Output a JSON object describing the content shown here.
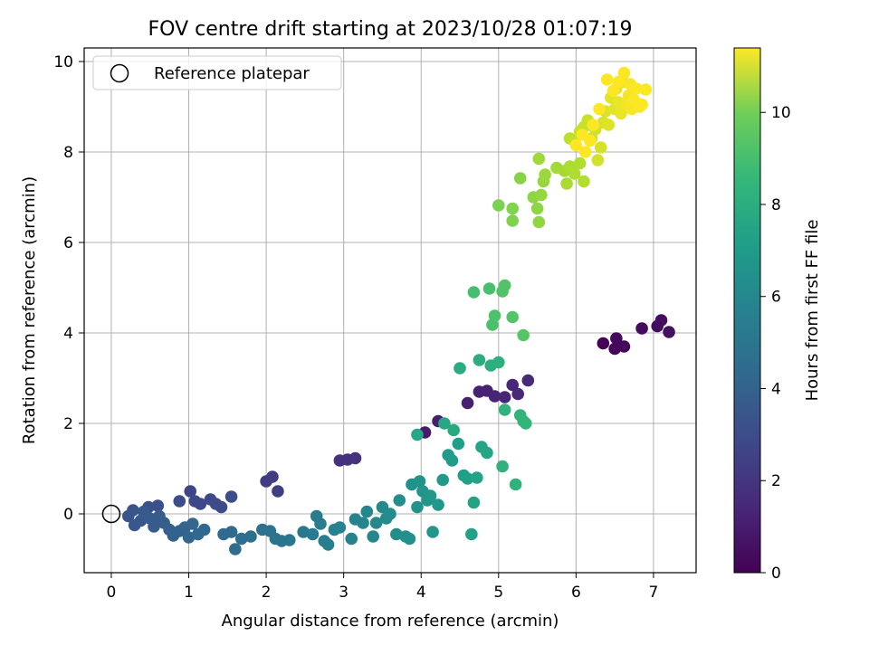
{
  "chart_data": {
    "type": "scatter",
    "title": "FOV centre drift starting at 2023/10/28 01:07:19",
    "xlabel": "Angular distance from reference (arcmin)",
    "ylabel": "Rotation from reference (arcmin)",
    "xlim": [
      -0.35,
      7.55
    ],
    "ylim": [
      -1.3,
      10.3
    ],
    "xticks": [
      "0",
      "1",
      "2",
      "3",
      "4",
      "5",
      "6",
      "7"
    ],
    "yticks": [
      "0",
      "2",
      "4",
      "6",
      "8",
      "10"
    ],
    "grid": true,
    "legend": {
      "placement": "upper-left",
      "entries": [
        "Reference platepar"
      ]
    },
    "reference_point": {
      "x": 0,
      "y": 0
    },
    "colorbar": {
      "label": "Hours from first FF file",
      "range": [
        0,
        11.4
      ],
      "ticks": [
        "0",
        "2",
        "4",
        "6",
        "8",
        "10"
      ],
      "colormap": "viridis"
    },
    "series": [
      {
        "points": [
          [
            6.35,
            3.77
          ],
          [
            6.5,
            3.65
          ],
          [
            6.52,
            3.88
          ],
          [
            6.62,
            3.7
          ],
          [
            6.85,
            4.1
          ],
          [
            7.05,
            4.15
          ],
          [
            7.1,
            4.28
          ],
          [
            7.2,
            4.02
          ],
          [
            4.05,
            1.8
          ],
          [
            4.22,
            2.05
          ],
          [
            4.6,
            2.45
          ],
          [
            4.75,
            2.7
          ],
          [
            4.85,
            2.72
          ],
          [
            4.95,
            2.6
          ],
          [
            5.08,
            2.58
          ],
          [
            5.18,
            2.85
          ],
          [
            5.25,
            2.65
          ],
          [
            5.38,
            2.95
          ],
          [
            2.95,
            1.18
          ],
          [
            3.05,
            1.2
          ],
          [
            3.15,
            1.23
          ],
          [
            2.0,
            0.72
          ],
          [
            2.08,
            0.82
          ],
          [
            2.15,
            0.5
          ],
          [
            1.02,
            0.5
          ],
          [
            1.08,
            0.28
          ],
          [
            1.15,
            0.22
          ],
          [
            1.28,
            0.32
          ],
          [
            1.35,
            0.22
          ],
          [
            1.42,
            0.15
          ],
          [
            1.55,
            0.38
          ],
          [
            0.88,
            0.28
          ],
          [
            0.6,
            0.18
          ],
          [
            0.48,
            0.15
          ],
          [
            0.22,
            -0.05
          ],
          [
            0.28,
            0.08
          ],
          [
            0.3,
            -0.25
          ],
          [
            0.38,
            -0.15
          ],
          [
            0.42,
            0.05
          ],
          [
            0.5,
            -0.1
          ],
          [
            0.55,
            -0.28
          ],
          [
            0.62,
            -0.05
          ],
          [
            0.68,
            -0.2
          ],
          [
            0.75,
            -0.35
          ],
          [
            0.8,
            -0.48
          ],
          [
            0.88,
            -0.38
          ],
          [
            0.95,
            -0.3
          ],
          [
            1.0,
            -0.52
          ],
          [
            1.05,
            -0.22
          ],
          [
            1.12,
            -0.45
          ],
          [
            1.2,
            -0.35
          ],
          [
            1.45,
            -0.45
          ],
          [
            1.55,
            -0.4
          ],
          [
            1.6,
            -0.78
          ],
          [
            1.68,
            -0.55
          ],
          [
            1.8,
            -0.5
          ],
          [
            1.95,
            -0.35
          ],
          [
            2.05,
            -0.38
          ],
          [
            2.12,
            -0.55
          ],
          [
            2.2,
            -0.6
          ],
          [
            2.3,
            -0.58
          ],
          [
            2.48,
            -0.4
          ],
          [
            2.6,
            -0.45
          ],
          [
            2.65,
            -0.05
          ],
          [
            2.7,
            -0.22
          ],
          [
            2.75,
            -0.6
          ],
          [
            2.8,
            -0.68
          ],
          [
            2.88,
            -0.35
          ],
          [
            2.95,
            -0.3
          ],
          [
            3.1,
            -0.55
          ],
          [
            3.15,
            -0.12
          ],
          [
            3.25,
            -0.2
          ],
          [
            3.3,
            0.05
          ],
          [
            3.38,
            -0.5
          ],
          [
            3.42,
            -0.2
          ],
          [
            3.5,
            0.15
          ],
          [
            3.55,
            -0.1
          ],
          [
            3.6,
            0.0
          ],
          [
            3.68,
            -0.45
          ],
          [
            3.72,
            0.3
          ],
          [
            3.8,
            -0.5
          ],
          [
            3.85,
            -0.55
          ],
          [
            3.88,
            0.65
          ],
          [
            3.95,
            0.15
          ],
          [
            3.98,
            0.72
          ],
          [
            4.02,
            0.5
          ],
          [
            4.08,
            0.3
          ],
          [
            4.12,
            0.4
          ],
          [
            4.15,
            -0.4
          ],
          [
            4.22,
            0.2
          ],
          [
            4.28,
            0.75
          ],
          [
            4.35,
            1.3
          ],
          [
            4.4,
            1.18
          ],
          [
            4.48,
            1.55
          ],
          [
            4.55,
            0.85
          ],
          [
            4.6,
            0.78
          ],
          [
            4.65,
            -0.45
          ],
          [
            4.68,
            0.25
          ],
          [
            4.72,
            0.8
          ],
          [
            4.78,
            1.48
          ],
          [
            4.85,
            1.35
          ],
          [
            3.95,
            1.75
          ],
          [
            4.3,
            2.0
          ],
          [
            4.42,
            1.85
          ],
          [
            4.5,
            3.22
          ],
          [
            4.75,
            3.4
          ],
          [
            4.9,
            3.28
          ],
          [
            5.0,
            3.35
          ],
          [
            5.05,
            1.05
          ],
          [
            5.08,
            2.3
          ],
          [
            5.22,
            0.65
          ],
          [
            5.28,
            2.18
          ],
          [
            5.32,
            2.05
          ],
          [
            5.35,
            2.0
          ],
          [
            4.68,
            4.9
          ],
          [
            4.88,
            4.98
          ],
          [
            4.92,
            4.18
          ],
          [
            4.95,
            4.38
          ],
          [
            5.05,
            4.92
          ],
          [
            5.08,
            5.05
          ],
          [
            5.18,
            4.35
          ],
          [
            5.32,
            3.95
          ],
          [
            5.0,
            6.82
          ],
          [
            5.18,
            6.48
          ],
          [
            5.18,
            6.75
          ],
          [
            5.28,
            7.42
          ],
          [
            5.45,
            7.0
          ],
          [
            5.5,
            6.75
          ],
          [
            5.52,
            6.45
          ],
          [
            5.55,
            7.05
          ],
          [
            5.58,
            7.35
          ],
          [
            5.6,
            7.5
          ],
          [
            5.52,
            7.85
          ],
          [
            5.75,
            7.65
          ],
          [
            5.85,
            7.58
          ],
          [
            5.88,
            7.3
          ],
          [
            5.92,
            7.68
          ],
          [
            5.98,
            7.52
          ],
          [
            6.05,
            7.75
          ],
          [
            6.1,
            7.35
          ],
          [
            5.92,
            8.3
          ],
          [
            5.98,
            8.25
          ],
          [
            6.05,
            8.45
          ],
          [
            6.1,
            8.55
          ],
          [
            6.15,
            8.7
          ],
          [
            6.2,
            8.3
          ],
          [
            6.25,
            8.5
          ],
          [
            6.28,
            7.82
          ],
          [
            6.32,
            8.1
          ],
          [
            6.35,
            8.65
          ],
          [
            6.38,
            8.9
          ],
          [
            6.42,
            8.6
          ],
          [
            6.45,
            9.2
          ],
          [
            6.5,
            8.95
          ],
          [
            6.52,
            9.4
          ],
          [
            6.55,
            9.1
          ],
          [
            6.58,
            8.85
          ],
          [
            6.62,
            9.55
          ],
          [
            6.65,
            9.05
          ],
          [
            6.68,
            9.25
          ],
          [
            6.7,
            9.5
          ],
          [
            6.72,
            8.95
          ],
          [
            6.75,
            9.15
          ],
          [
            6.78,
            9.4
          ],
          [
            6.82,
            9.0
          ],
          [
            6.85,
            9.05
          ],
          [
            6.9,
            9.38
          ],
          [
            6.62,
            9.75
          ],
          [
            6.55,
            9.55
          ],
          [
            6.48,
            9.35
          ],
          [
            6.4,
            9.6
          ],
          [
            6.3,
            8.95
          ],
          [
            6.22,
            8.6
          ],
          [
            6.18,
            8.25
          ],
          [
            6.12,
            8.0
          ],
          [
            6.08,
            8.38
          ],
          [
            6.0,
            8.15
          ]
        ],
        "hours": [
          0.1,
          0.15,
          0.2,
          0.25,
          0.3,
          0.35,
          0.4,
          0.45,
          0.8,
          0.9,
          1.0,
          1.05,
          1.1,
          1.15,
          1.2,
          1.25,
          1.3,
          1.35,
          1.6,
          1.65,
          1.7,
          2.0,
          2.05,
          2.1,
          2.4,
          2.45,
          2.5,
          2.55,
          2.6,
          2.65,
          2.7,
          2.75,
          2.8,
          2.85,
          3.0,
          3.05,
          3.1,
          3.15,
          3.2,
          3.25,
          3.3,
          3.35,
          3.4,
          3.45,
          3.55,
          3.6,
          3.65,
          3.7,
          3.75,
          3.8,
          3.85,
          3.9,
          3.95,
          4.0,
          4.1,
          4.15,
          4.2,
          4.3,
          4.35,
          4.4,
          4.5,
          4.6,
          4.7,
          4.75,
          4.8,
          4.85,
          4.9,
          4.95,
          5.0,
          5.1,
          5.15,
          5.2,
          5.25,
          5.3,
          5.35,
          5.4,
          5.45,
          5.5,
          5.55,
          5.6,
          5.65,
          5.7,
          5.75,
          5.8,
          5.85,
          5.9,
          5.95,
          6.0,
          6.05,
          6.1,
          6.15,
          6.2,
          6.3,
          6.35,
          6.4,
          6.45,
          6.5,
          6.55,
          6.6,
          6.65,
          6.7,
          6.8,
          6.85,
          6.9,
          7.0,
          7.1,
          7.15,
          7.2,
          7.25,
          7.3,
          7.35,
          7.4,
          7.45,
          7.5,
          8.0,
          8.05,
          8.1,
          8.15,
          8.2,
          8.25,
          8.3,
          8.35,
          9.1,
          9.15,
          9.2,
          9.3,
          9.4,
          9.45,
          9.5,
          9.55,
          9.6,
          9.65,
          9.7,
          9.8,
          9.85,
          9.9,
          9.95,
          10.0,
          10.05,
          10.1,
          10.3,
          10.35,
          10.4,
          10.45,
          10.5,
          10.55,
          10.6,
          10.65,
          10.7,
          10.75,
          10.8,
          10.85,
          10.9,
          10.95,
          11.0,
          11.05,
          11.1,
          11.15,
          11.2,
          11.25,
          11.3,
          11.3,
          11.35,
          11.35,
          11.35,
          11.38,
          11.38,
          11.4,
          11.4,
          11.4,
          11.4,
          11.4,
          11.4,
          11.4,
          11.4,
          11.4,
          11.4
        ]
      }
    ]
  }
}
